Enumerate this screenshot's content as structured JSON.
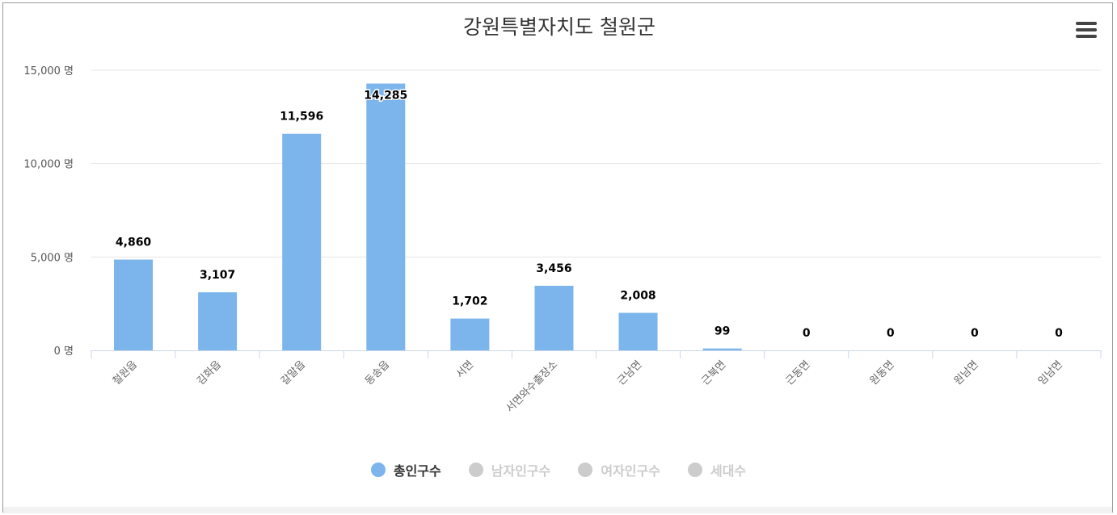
{
  "chart_data": {
    "type": "bar",
    "title": "강원특별자치도 철원군",
    "categories": [
      "철원읍",
      "김화읍",
      "갈말읍",
      "동송읍",
      "서면",
      "서면와수출장소",
      "근남면",
      "근북면",
      "근동면",
      "원동면",
      "원남면",
      "임남면"
    ],
    "series": [
      {
        "name": "총인구수",
        "values": [
          4860,
          3107,
          11596,
          14285,
          1702,
          3456,
          2008,
          99,
          0,
          0,
          0,
          0
        ],
        "visible": true
      }
    ],
    "data_labels": [
      "4,860",
      "3,107",
      "11,596",
      "14,285",
      "1,702",
      "3,456",
      "2,008",
      "99",
      "0",
      "0",
      "0",
      "0"
    ],
    "ylim": [
      0,
      15000
    ],
    "yticks": [
      0,
      5000,
      10000,
      15000
    ],
    "ytick_labels": [
      "0 명",
      "5,000 명",
      "10,000 명",
      "15,000 명"
    ],
    "grid": true,
    "legend_position": "bottom"
  },
  "legend": [
    {
      "label": "총인구수",
      "color": "#7cb5ec",
      "active": true
    },
    {
      "label": "남자인구수",
      "color": "#cccccc",
      "active": false
    },
    {
      "label": "여자인구수",
      "color": "#cccccc",
      "active": false
    },
    {
      "label": "세대수",
      "color": "#cccccc",
      "active": false
    }
  ],
  "colors": {
    "bar": "#7cb5ec",
    "grid": "#e6e6e6",
    "axis": "#ccd6eb",
    "text": "#333333",
    "inactive_text": "#cccccc"
  },
  "icons": {
    "menu": "hamburger-menu-icon"
  }
}
